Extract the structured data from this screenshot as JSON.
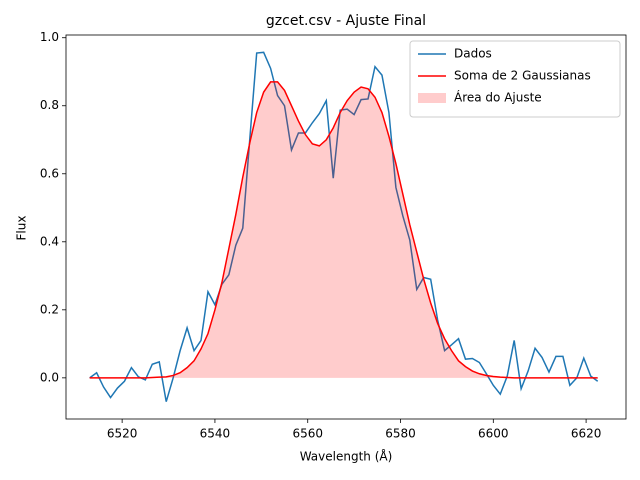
{
  "chart_data": {
    "type": "line",
    "title": "gzcet.csv - Ajuste Final",
    "x_label": "Wavelength (Å)",
    "y_label": "Flux",
    "x": [
      6513.0,
      6514.5,
      6516.0,
      6517.5,
      6519.0,
      6520.5,
      6522.0,
      6523.5,
      6525.0,
      6526.5,
      6528.0,
      6529.5,
      6531.0,
      6532.5,
      6534.0,
      6535.5,
      6537.0,
      6538.5,
      6540.0,
      6541.5,
      6543.0,
      6544.5,
      6546.0,
      6547.5,
      6549.0,
      6550.5,
      6552.0,
      6553.5,
      6555.0,
      6556.5,
      6558.0,
      6559.5,
      6561.0,
      6562.5,
      6564.0,
      6565.5,
      6567.0,
      6568.5,
      6570.0,
      6571.5,
      6573.0,
      6574.5,
      6576.0,
      6577.5,
      6579.0,
      6580.5,
      6582.0,
      6583.5,
      6585.0,
      6586.5,
      6588.0,
      6589.5,
      6591.0,
      6592.5,
      6594.0,
      6595.5,
      6597.0,
      6598.5,
      6600.0,
      6601.5,
      6603.0,
      6604.5,
      6606.0,
      6607.5,
      6609.0,
      6610.5,
      6612.0,
      6613.5,
      6615.0,
      6616.5,
      6618.0,
      6619.5,
      6621.0,
      6622.5
    ],
    "series": [
      {
        "name": "Dados",
        "color": "#1f77b4",
        "values": [
          0.0,
          0.015,
          -0.027,
          -0.058,
          -0.03,
          -0.01,
          0.03,
          0.003,
          -0.006,
          0.04,
          0.047,
          -0.07,
          0.0,
          0.08,
          0.147,
          0.08,
          0.11,
          0.253,
          0.215,
          0.275,
          0.303,
          0.39,
          0.44,
          0.7,
          0.955,
          0.957,
          0.91,
          0.83,
          0.8,
          0.67,
          0.72,
          0.72,
          0.75,
          0.777,
          0.815,
          0.587,
          0.787,
          0.79,
          0.774,
          0.818,
          0.82,
          0.915,
          0.89,
          0.78,
          0.56,
          0.476,
          0.405,
          0.26,
          0.295,
          0.29,
          0.17,
          0.08,
          0.097,
          0.115,
          0.055,
          0.057,
          0.045,
          0.012,
          -0.022,
          -0.048,
          0.005,
          0.11,
          -0.032,
          0.02,
          0.087,
          0.06,
          0.017,
          0.063,
          0.063,
          -0.022,
          0.0,
          0.058,
          0.005,
          -0.01
        ]
      },
      {
        "name": "Soma de 2 Gaussianas",
        "color": "#ff0000",
        "values": [
          0.0,
          0.0,
          0.0,
          0.0,
          0.0,
          0.0,
          0.0,
          0.0,
          0.0,
          0.001,
          0.002,
          0.003,
          0.007,
          0.015,
          0.03,
          0.05,
          0.085,
          0.13,
          0.2,
          0.28,
          0.38,
          0.48,
          0.59,
          0.69,
          0.78,
          0.84,
          0.87,
          0.87,
          0.845,
          0.8,
          0.755,
          0.715,
          0.688,
          0.682,
          0.7,
          0.735,
          0.78,
          0.815,
          0.84,
          0.855,
          0.85,
          0.825,
          0.78,
          0.71,
          0.63,
          0.54,
          0.45,
          0.37,
          0.29,
          0.22,
          0.16,
          0.115,
          0.08,
          0.05,
          0.033,
          0.02,
          0.012,
          0.007,
          0.004,
          0.002,
          0.001,
          0.0,
          0.0,
          0.0,
          0.0,
          0.0,
          0.0,
          0.0,
          0.0,
          0.0,
          0.0,
          0.0,
          0.0,
          0.0
        ],
        "fill": {
          "name": "Área do Ajuste",
          "color": "#ff0000",
          "alpha": 0.2
        }
      }
    ],
    "xlim": [
      6507.9,
      6628.6
    ],
    "ylim": [
      -0.121,
      1.008
    ],
    "xticks": [
      6520,
      6540,
      6560,
      6580,
      6600,
      6620
    ],
    "yticks": [
      {
        "value": 0.0,
        "label": "0.0"
      },
      0.2,
      0.4,
      0.6,
      0.8,
      {
        "value": 1.0,
        "label": "1.0"
      }
    ],
    "legend": "upper right"
  }
}
